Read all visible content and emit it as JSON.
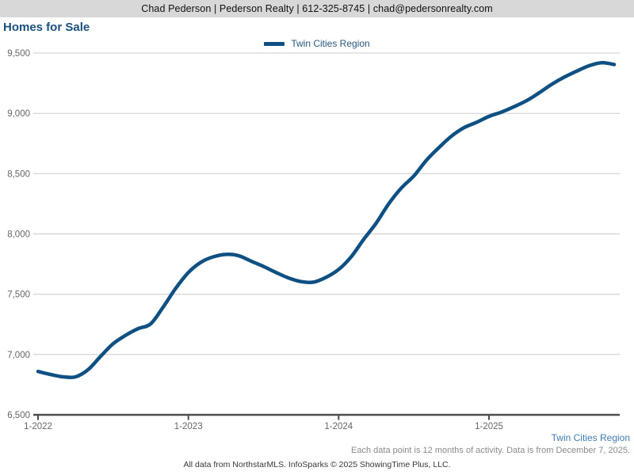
{
  "header": {
    "contact_line": "Chad Pederson | Pederson Realty | 612-325-8745 | chad@pedersonrealty.com"
  },
  "title": "Homes for Sale",
  "legend": {
    "label": "Twin Cities Region"
  },
  "footer": {
    "series_label": "Twin Cities Region",
    "data_note": "Each data point is 12 months of activity. Data is from December 7, 2025.",
    "attribution": "All data from NorthstarMLS. InfoSparks © 2025 ShowingTime Plus, LLC."
  },
  "colors": {
    "line": "#0f5083",
    "title": "#1b4f7c",
    "legend-text": "#27567e",
    "series-label": "#3e7cb1",
    "note": "#8a8a8a",
    "attribution": "#383838",
    "grid": "#cccccc",
    "axis": "#4d4d4d",
    "tick-label": "#666666",
    "header-bg": "#d8d8d8",
    "header-text": "#111111"
  },
  "chart_data": {
    "type": "line",
    "title": "Homes for Sale",
    "series_name": "Twin Cities Region",
    "x": [
      "1-2022",
      "2-2022",
      "3-2022",
      "4-2022",
      "5-2022",
      "6-2022",
      "7-2022",
      "8-2022",
      "9-2022",
      "10-2022",
      "11-2022",
      "12-2022",
      "1-2023",
      "2-2023",
      "3-2023",
      "4-2023",
      "5-2023",
      "6-2023",
      "7-2023",
      "8-2023",
      "9-2023",
      "10-2023",
      "11-2023",
      "12-2023",
      "1-2024",
      "2-2024",
      "3-2024",
      "4-2024",
      "5-2024",
      "6-2024",
      "7-2024",
      "8-2024",
      "9-2024",
      "10-2024",
      "11-2024",
      "12-2024",
      "1-2025",
      "2-2025",
      "3-2025",
      "4-2025",
      "5-2025",
      "6-2025",
      "7-2025",
      "8-2025",
      "9-2025",
      "10-2025",
      "11-2025"
    ],
    "values": [
      6860,
      6835,
      6815,
      6815,
      6875,
      6985,
      7090,
      7160,
      7215,
      7255,
      7395,
      7550,
      7680,
      7765,
      7810,
      7830,
      7820,
      7775,
      7730,
      7680,
      7635,
      7605,
      7600,
      7640,
      7705,
      7810,
      7955,
      8090,
      8250,
      8380,
      8480,
      8610,
      8715,
      8810,
      8880,
      8925,
      8975,
      9010,
      9055,
      9105,
      9170,
      9240,
      9300,
      9350,
      9395,
      9420,
      9405
    ],
    "y_ticks": [
      6500,
      7000,
      7500,
      8000,
      8500,
      9000,
      9500
    ],
    "y_tick_labels": [
      "6,500",
      "7,000",
      "7,500",
      "8,000",
      "8,500",
      "9,000",
      "9,500"
    ],
    "x_tick_labels": [
      "1-2022",
      "1-2023",
      "1-2024",
      "1-2025"
    ],
    "ylim": [
      6500,
      9500
    ],
    "grid": "horizontal",
    "legend_position": "top-center"
  }
}
